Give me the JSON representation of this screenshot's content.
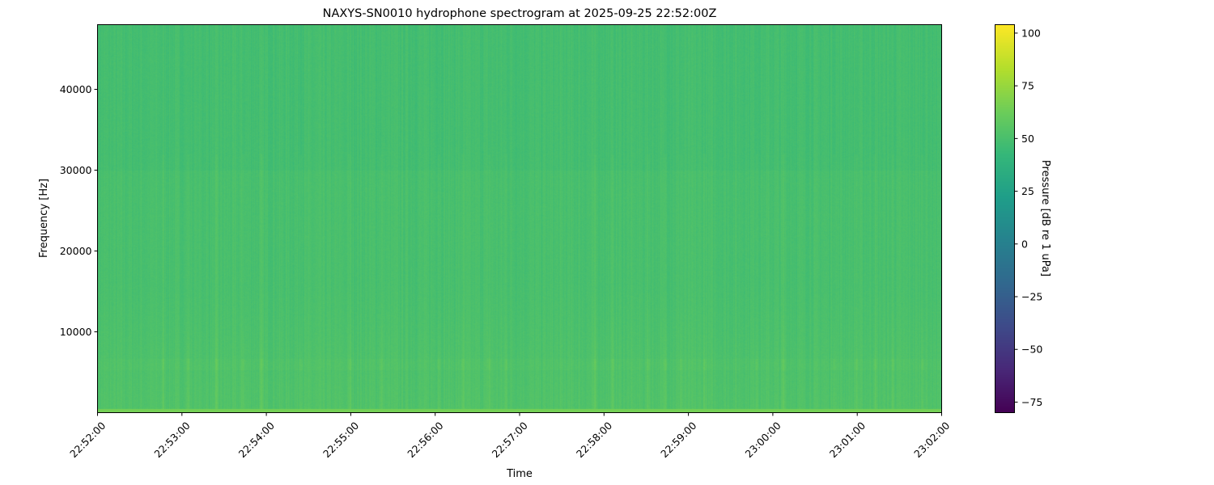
{
  "chart_data": {
    "type": "heatmap",
    "title": "NAXYS-SN0010 hydrophone spectrogram at 2025-09-25 22:52:00Z",
    "xlabel": "Time",
    "ylabel": "Frequency [Hz]",
    "xlim": [
      "22:52:00",
      "23:02:00"
    ],
    "ylim": [
      0,
      48000
    ],
    "x_ticks": [
      "22:52:00",
      "22:53:00",
      "22:54:00",
      "22:55:00",
      "22:56:00",
      "22:57:00",
      "22:58:00",
      "22:59:00",
      "23:00:00",
      "23:01:00",
      "23:02:00"
    ],
    "y_ticks": [
      10000,
      20000,
      30000,
      40000
    ],
    "colorbar": {
      "label": "Pressure [dB re 1 uPa]",
      "colormap": "viridis",
      "range": [
        -80,
        104
      ],
      "ticks": [
        100,
        75,
        50,
        25,
        0,
        -25,
        -50,
        -75
      ]
    },
    "background_level_db": 50,
    "low_frequency_band_hz": [
      0,
      500
    ],
    "low_frequency_band_level_db": 65,
    "tonal_band_hz": 6000,
    "bright_event_times": [
      "22:52:46",
      "22:53:04",
      "22:53:24",
      "22:53:43",
      "22:53:56",
      "22:54:24",
      "22:54:59",
      "22:55:21",
      "22:56:02",
      "22:56:19",
      "22:56:38",
      "22:56:50",
      "22:57:53",
      "22:58:06",
      "22:58:31",
      "22:58:43",
      "22:58:54",
      "22:59:11",
      "22:59:48",
      "23:00:07",
      "23:00:43",
      "23:00:59",
      "23:01:12",
      "23:01:25",
      "23:01:46"
    ],
    "grid": false
  }
}
